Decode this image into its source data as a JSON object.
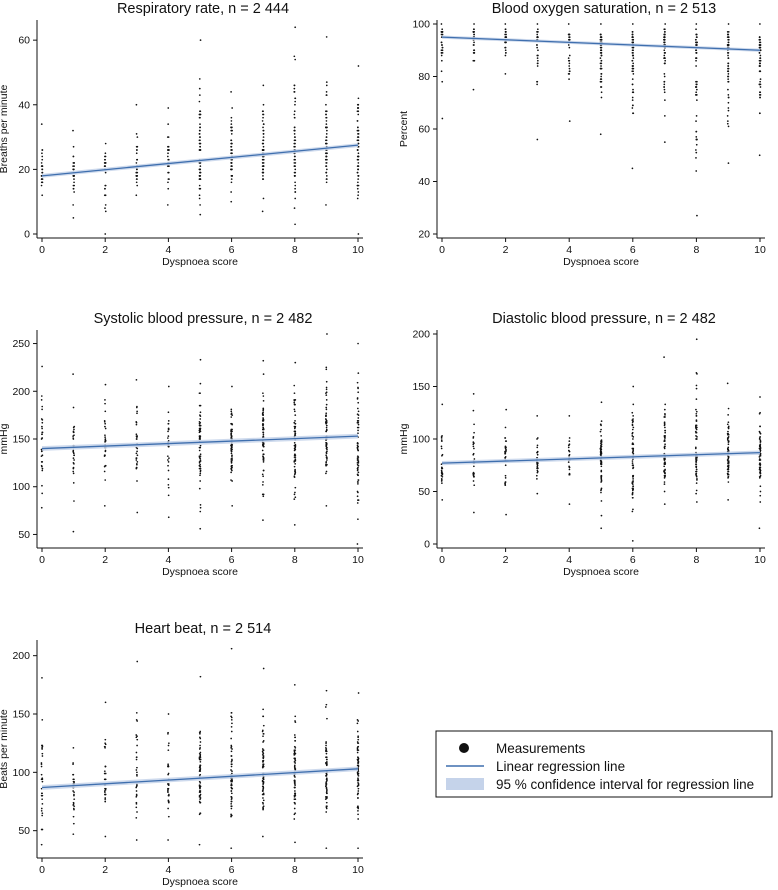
{
  "colors": {
    "points": "#111111",
    "regression_line": "#3f6fae",
    "ci_band": "#c5d3ea",
    "axis": "#111111"
  },
  "legend": {
    "measurements": "Measurements",
    "regression": "Linear regression line",
    "ci": "95 %  confidence interval for regression line"
  },
  "chart_data": [
    {
      "type": "scatter",
      "title": "Respiratory rate, n = 2 444",
      "xlabel": "Dyspnoea score",
      "ylabel": "Breaths per minute",
      "xlim": [
        0,
        10
      ],
      "ylim": [
        0,
        65
      ],
      "xticks": [
        0,
        2,
        4,
        6,
        8,
        10
      ],
      "yticks": [
        0,
        20,
        40,
        60
      ],
      "regression": {
        "x": [
          0,
          10
        ],
        "y": [
          18,
          27.5
        ]
      },
      "ci_halfwidth": 0.6,
      "point_ranges": [
        [
          12,
          34
        ],
        [
          5,
          32
        ],
        [
          0,
          28
        ],
        [
          12,
          40
        ],
        [
          9,
          39
        ],
        [
          6,
          60
        ],
        [
          10,
          44
        ],
        [
          7,
          46
        ],
        [
          3,
          64
        ],
        [
          9,
          61
        ],
        [
          0,
          52
        ]
      ]
    },
    {
      "type": "scatter",
      "title": "Blood oxygen saturation, n = 2 513",
      "xlabel": "Dyspnoea score",
      "ylabel": "Percent",
      "xlim": [
        0,
        10
      ],
      "ylim": [
        20,
        100
      ],
      "xticks": [
        0,
        2,
        4,
        6,
        8,
        10
      ],
      "yticks": [
        20,
        40,
        60,
        80,
        100
      ],
      "regression": {
        "x": [
          0,
          10
        ],
        "y": [
          95,
          90
        ]
      },
      "ci_halfwidth": 0.6,
      "point_ranges": [
        [
          64,
          100
        ],
        [
          75,
          100
        ],
        [
          81,
          100
        ],
        [
          56,
          100
        ],
        [
          63,
          100
        ],
        [
          58,
          100
        ],
        [
          45,
          100
        ],
        [
          55,
          100
        ],
        [
          27,
          100
        ],
        [
          47,
          100
        ],
        [
          50,
          100
        ]
      ]
    },
    {
      "type": "scatter",
      "title": "Systolic blood pressure, n = 2 482",
      "xlabel": "Dyspnoea score",
      "ylabel": "mmHg",
      "xlim": [
        0,
        10
      ],
      "ylim": [
        40,
        260
      ],
      "xticks": [
        0,
        2,
        4,
        6,
        8,
        10
      ],
      "yticks": [
        50,
        100,
        150,
        200,
        250
      ],
      "regression": {
        "x": [
          0,
          10
        ],
        "y": [
          140,
          153
        ]
      },
      "ci_halfwidth": 2.5,
      "point_ranges": [
        [
          78,
          226
        ],
        [
          53,
          218
        ],
        [
          80,
          207
        ],
        [
          73,
          212
        ],
        [
          68,
          205
        ],
        [
          56,
          233
        ],
        [
          80,
          205
        ],
        [
          65,
          232
        ],
        [
          60,
          230
        ],
        [
          80,
          260
        ],
        [
          40,
          250
        ]
      ]
    },
    {
      "type": "scatter",
      "title": "Diastolic blood pressure, n = 2 482",
      "xlabel": "Dyspnoea score",
      "ylabel": "mmHg",
      "xlim": [
        0,
        10
      ],
      "ylim": [
        0,
        200
      ],
      "xticks": [
        0,
        2,
        4,
        6,
        8,
        10
      ],
      "yticks": [
        0,
        50,
        100,
        150,
        200
      ],
      "regression": {
        "x": [
          0,
          10
        ],
        "y": [
          77,
          87
        ]
      },
      "ci_halfwidth": 2,
      "point_ranges": [
        [
          42,
          133
        ],
        [
          30,
          143
        ],
        [
          28,
          128
        ],
        [
          48,
          122
        ],
        [
          38,
          122
        ],
        [
          15,
          135
        ],
        [
          3,
          150
        ],
        [
          38,
          178
        ],
        [
          40,
          195
        ],
        [
          42,
          153
        ],
        [
          15,
          140
        ]
      ]
    },
    {
      "type": "scatter",
      "title": "Heart beat, n = 2 514",
      "xlabel": "Dyspnoea score",
      "ylabel": "Beats per minute",
      "xlim": [
        0,
        10
      ],
      "ylim": [
        30,
        210
      ],
      "xticks": [
        0,
        2,
        4,
        6,
        8,
        10
      ],
      "yticks": [
        50,
        100,
        150,
        200
      ],
      "regression": {
        "x": [
          0,
          10
        ],
        "y": [
          87,
          103
        ]
      },
      "ci_halfwidth": 2,
      "point_ranges": [
        [
          38,
          181
        ],
        [
          47,
          121
        ],
        [
          45,
          160
        ],
        [
          42,
          195
        ],
        [
          42,
          150
        ],
        [
          38,
          182
        ],
        [
          35,
          206
        ],
        [
          45,
          189
        ],
        [
          40,
          175
        ],
        [
          35,
          170
        ],
        [
          35,
          168
        ]
      ]
    }
  ]
}
